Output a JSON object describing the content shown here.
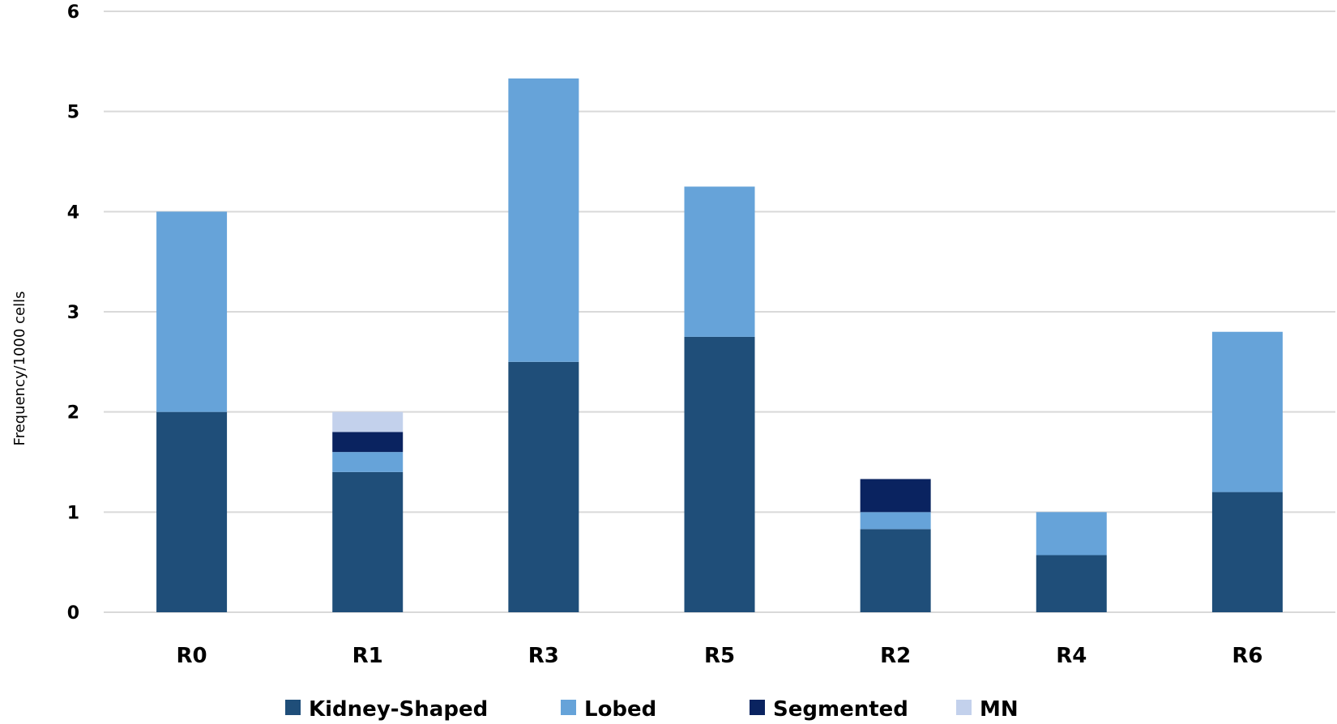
{
  "chart_data": {
    "type": "bar",
    "stacked": true,
    "title": "",
    "xlabel": "",
    "ylabel": "Frequency/1000 cells",
    "ylim": [
      0,
      6
    ],
    "yticks": [
      0,
      1,
      2,
      3,
      4,
      5,
      6
    ],
    "grid": true,
    "legend_position": "bottom",
    "categories": [
      "R0",
      "R1",
      "R3",
      "R5",
      "R2",
      "R4",
      "R6"
    ],
    "series": [
      {
        "name": "Kidney-Shaped",
        "color": "#1f4e79",
        "values": [
          2.0,
          1.4,
          2.5,
          2.75,
          0.83,
          0.57,
          1.2
        ]
      },
      {
        "name": "Lobed",
        "color": "#66a3d9",
        "values": [
          2.0,
          0.2,
          2.83,
          1.5,
          0.17,
          0.43,
          1.6
        ]
      },
      {
        "name": "Segmented",
        "color": "#0a2360",
        "values": [
          0,
          0.2,
          0,
          0,
          0.33,
          0,
          0
        ]
      },
      {
        "name": "MN",
        "color": "#c3d1ec",
        "values": [
          0,
          0.2,
          0,
          0,
          0,
          0,
          0
        ]
      }
    ]
  }
}
